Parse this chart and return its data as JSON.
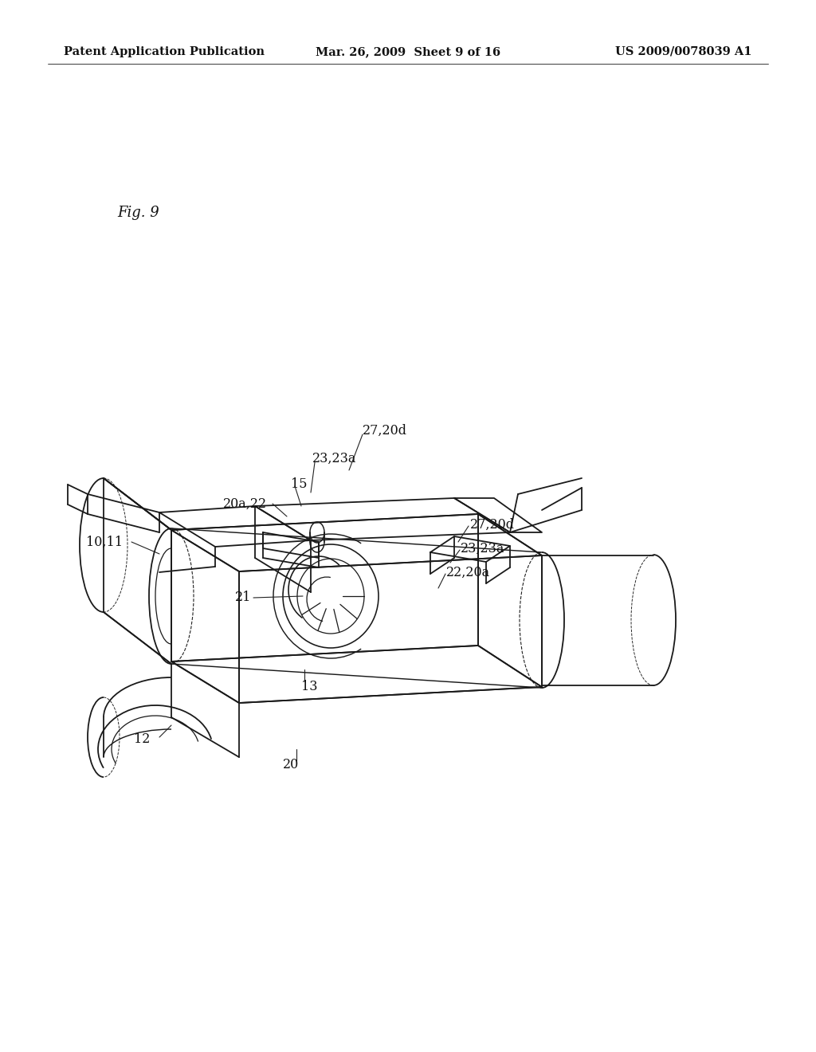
{
  "background_color": "#ffffff",
  "header_left": "Patent Application Publication",
  "header_center": "Mar. 26, 2009  Sheet 9 of 16",
  "header_right": "US 2009/0078039 A1",
  "fig_label": "Fig. 9",
  "line_color": "#1a1a1a",
  "line_width": 1.3,
  "label_fontsize": 11.5,
  "header_fontsize": 10.5
}
